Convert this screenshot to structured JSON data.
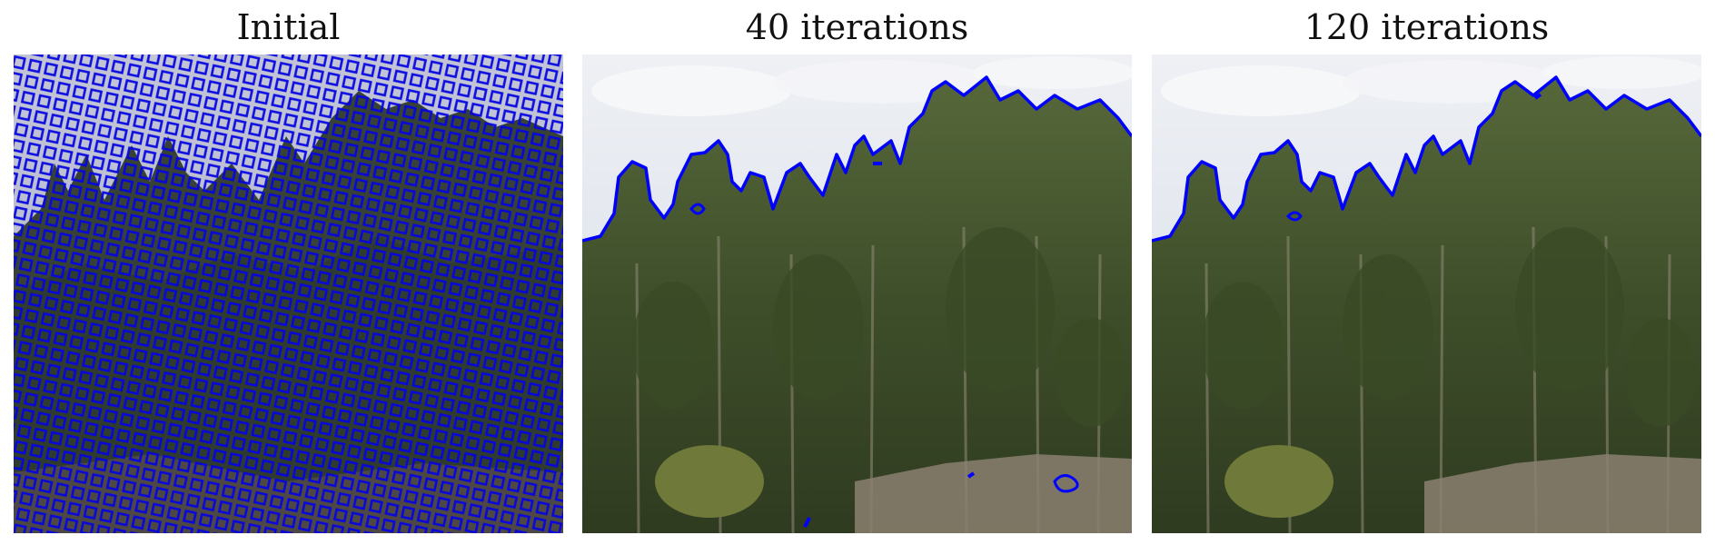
{
  "panels": [
    {
      "title": "Initial",
      "contour": "grid"
    },
    {
      "title": "40 iterations",
      "contour": "treeline-partial"
    },
    {
      "title": "120 iterations",
      "contour": "treeline"
    }
  ],
  "colors": {
    "sky": "#dfe4ec",
    "cloud": "#f3f4f7",
    "forest_dark": "#2f3c22",
    "forest_mid": "#44552e",
    "forest_light": "#5b6b3c",
    "ground": "#8a7f72",
    "contour": "#0000ff"
  }
}
